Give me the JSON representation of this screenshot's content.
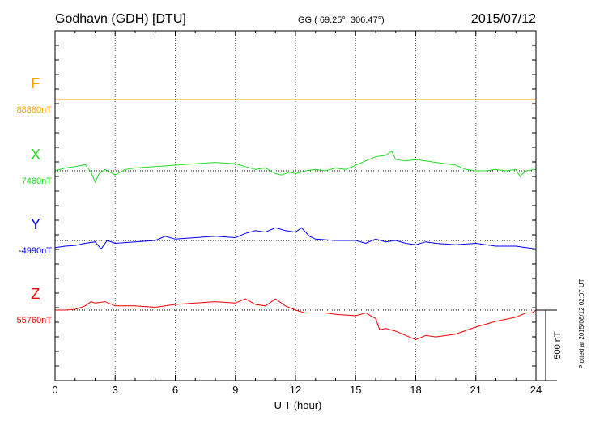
{
  "header": {
    "title": "Godhavn (GDH)  [DTU]",
    "coords": "GG ( 69.25°, 306.47°)",
    "date": "2015/07/12"
  },
  "footer": {
    "plotted": "Plotted at 2015/08/12 02:07 UT"
  },
  "chart_data": {
    "type": "line",
    "xlabel": "U T (hour)",
    "xlim": [
      0,
      24
    ],
    "xticks": [
      0,
      3,
      6,
      9,
      12,
      15,
      18,
      21,
      24
    ],
    "grid": true,
    "scale_bar": {
      "label": "500 nT",
      "value": 500
    },
    "series": [
      {
        "name": "F",
        "baseline_label": "88880nT",
        "color": "#f5a300",
        "x": [
          0,
          3,
          6,
          9,
          12,
          15,
          18,
          21,
          24
        ],
        "y": [
          88880,
          88880,
          88880,
          88880,
          88880,
          88880,
          88880,
          88880,
          88880
        ]
      },
      {
        "name": "X",
        "baseline_label": "7460nT",
        "color": "#22dd22",
        "x": [
          0,
          0.5,
          1,
          1.5,
          1.8,
          2.0,
          2.2,
          2.5,
          3,
          3.5,
          4,
          5,
          6,
          7,
          8,
          9,
          9.5,
          10,
          10.5,
          11,
          11.3,
          11.7,
          12,
          12.5,
          13,
          13.5,
          14,
          14.5,
          15,
          15.5,
          16,
          16.5,
          16.8,
          17,
          17.5,
          18,
          18.5,
          19,
          19.5,
          20,
          20.5,
          21,
          21.5,
          22,
          22.5,
          23,
          23.2,
          23.5,
          24
        ],
        "y": [
          7460,
          7480,
          7490,
          7505,
          7450,
          7380,
          7440,
          7470,
          7430,
          7470,
          7480,
          7490,
          7500,
          7510,
          7520,
          7510,
          7490,
          7470,
          7480,
          7440,
          7430,
          7450,
          7440,
          7460,
          7470,
          7460,
          7480,
          7470,
          7500,
          7530,
          7560,
          7570,
          7600,
          7540,
          7530,
          7540,
          7530,
          7520,
          7510,
          7500,
          7470,
          7460,
          7460,
          7470,
          7460,
          7470,
          7420,
          7460,
          7470
        ]
      },
      {
        "name": "Y",
        "baseline_label": "-4990nT",
        "color": "#0000ee",
        "x": [
          0,
          0.5,
          1,
          1.5,
          2,
          2.3,
          2.6,
          3,
          4,
          5,
          5.5,
          6,
          7,
          8,
          9,
          9.5,
          10,
          10.5,
          11,
          11.5,
          12,
          12.3,
          12.7,
          13,
          14,
          15,
          15.5,
          16,
          16.5,
          17,
          17.5,
          18,
          18.5,
          19,
          20,
          21,
          22,
          23,
          23.5,
          24
        ],
        "y": [
          -5040,
          -5030,
          -5025,
          -5010,
          -5000,
          -5050,
          -4990,
          -5010,
          -5000,
          -4990,
          -4960,
          -4980,
          -4970,
          -4960,
          -4970,
          -4940,
          -4920,
          -4930,
          -4900,
          -4920,
          -4930,
          -4900,
          -4960,
          -4980,
          -4990,
          -4990,
          -5010,
          -4980,
          -5000,
          -4990,
          -5010,
          -5020,
          -5000,
          -5010,
          -5020,
          -5010,
          -5030,
          -5030,
          -5040,
          -5050
        ]
      },
      {
        "name": "Z",
        "baseline_label": "55760nT",
        "color": "#ee0000",
        "x": [
          0,
          0.5,
          1,
          1.5,
          1.8,
          2,
          2.5,
          3,
          4,
          5,
          6,
          7,
          8,
          9,
          9.5,
          10,
          10.5,
          11,
          11.5,
          12,
          12.5,
          13,
          13.5,
          14,
          15,
          15.5,
          16,
          16.2,
          16.5,
          17,
          17.5,
          18,
          18.5,
          19,
          20,
          21,
          22,
          23,
          23.5,
          23.8,
          24
        ],
        "y": [
          55760,
          55760,
          55765,
          55790,
          55820,
          55810,
          55820,
          55790,
          55790,
          55780,
          55800,
          55810,
          55820,
          55810,
          55840,
          55800,
          55790,
          55840,
          55790,
          55760,
          55740,
          55740,
          55740,
          55730,
          55720,
          55740,
          55700,
          55620,
          55630,
          55610,
          55580,
          55550,
          55580,
          55570,
          55590,
          55640,
          55680,
          55710,
          55740,
          55740,
          55760
        ]
      }
    ]
  }
}
